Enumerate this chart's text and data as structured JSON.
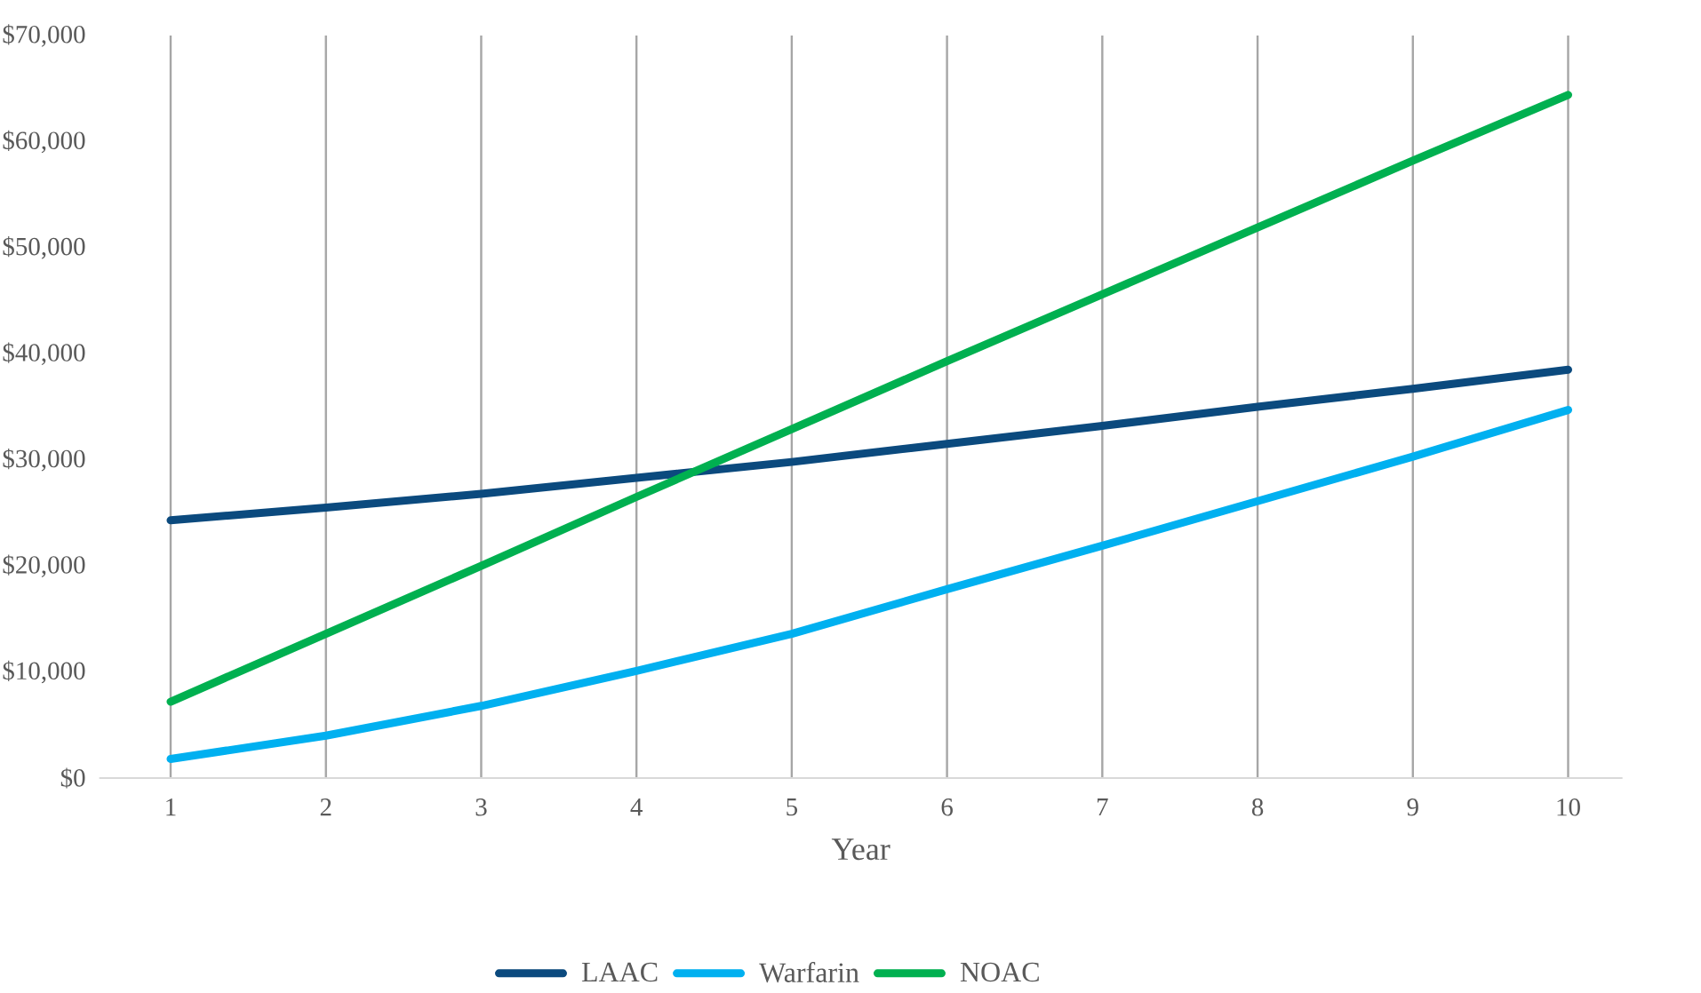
{
  "chart_data": {
    "type": "line",
    "xlabel": "Year",
    "categories": [
      "1",
      "2",
      "3",
      "4",
      "5",
      "6",
      "7",
      "8",
      "9",
      "10"
    ],
    "series": [
      {
        "name": "LAAC",
        "color": "#0b4a7e",
        "values": [
          24300,
          25500,
          26800,
          28300,
          29800,
          31500,
          33200,
          35000,
          36700,
          38500
        ]
      },
      {
        "name": "Warfarin",
        "color": "#00b0f0",
        "values": [
          1800,
          4000,
          6800,
          10100,
          13600,
          17800,
          21900,
          26100,
          30300,
          34700
        ]
      },
      {
        "name": "NOAC",
        "color": "#00b050",
        "values": [
          7200,
          13600,
          20000,
          26500,
          32900,
          39300,
          45600,
          51900,
          58200,
          64400
        ]
      }
    ],
    "ylim": [
      0,
      70000
    ],
    "yticks": [
      {
        "value": 0,
        "label": "$0"
      },
      {
        "value": 10000,
        "label": "$10,000"
      },
      {
        "value": 20000,
        "label": "$20,000"
      },
      {
        "value": 30000,
        "label": "$30,000"
      },
      {
        "value": 40000,
        "label": "$40,000"
      },
      {
        "value": 50000,
        "label": "$50,000"
      },
      {
        "value": 60000,
        "label": "$60,000"
      },
      {
        "value": 70000,
        "label": "$70,000"
      }
    ],
    "grid": "x",
    "legend": "bottom",
    "marker": "none",
    "line_style": "solid"
  }
}
